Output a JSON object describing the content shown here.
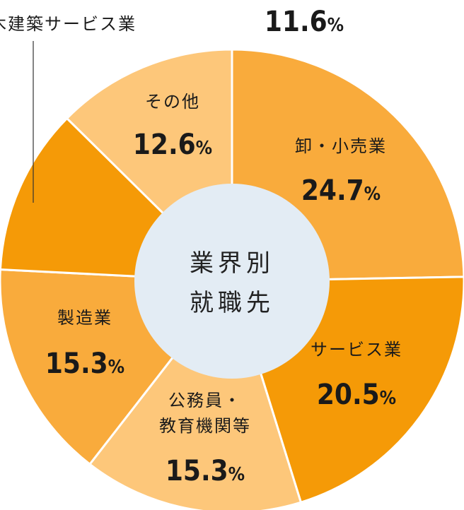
{
  "chart_data": {
    "type": "pie",
    "donut": true,
    "center_label": [
      "業界別",
      "就職先"
    ],
    "unit": "%",
    "slices": [
      {
        "label_lines": [
          "卸・小売業"
        ],
        "value": 24.7,
        "value_text": "24.7",
        "color": "#F9AB3C"
      },
      {
        "label_lines": [
          "サービス業"
        ],
        "value": 20.5,
        "value_text": "20.5",
        "color": "#F59A07"
      },
      {
        "label_lines": [
          "公務員・",
          "教育機関等"
        ],
        "value": 15.3,
        "value_text": "15.3",
        "color": "#FDC77A"
      },
      {
        "label_lines": [
          "製造業"
        ],
        "value": 15.3,
        "value_text": "15.3",
        "color": "#F9AB3C"
      },
      {
        "label_lines": [
          "建設業・土木建築サービス業"
        ],
        "value": 11.6,
        "value_text": "11.6",
        "color": "#F59A07"
      },
      {
        "label_lines": [
          "その他"
        ],
        "value": 12.6,
        "value_text": "12.6",
        "color": "#FDC77A"
      }
    ]
  }
}
